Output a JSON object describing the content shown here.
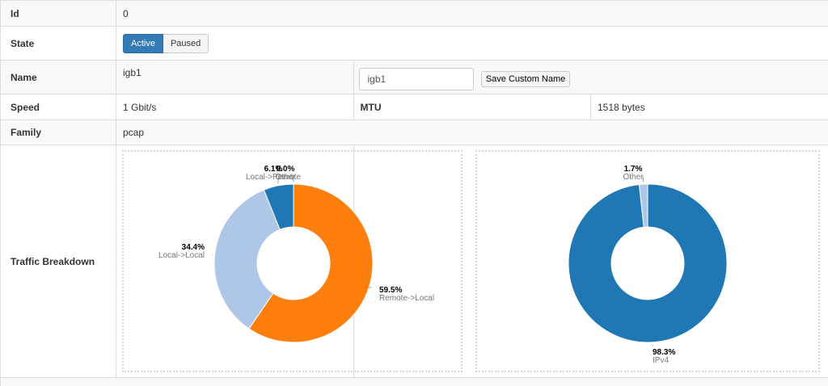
{
  "rows": {
    "id": {
      "label": "Id",
      "value": "0"
    },
    "state": {
      "label": "State",
      "buttons": [
        "Active",
        "Paused"
      ],
      "selected": "Active"
    },
    "name": {
      "label": "Name",
      "value": "igb1",
      "input_value": "igb1",
      "save_label": "Save Custom Name"
    },
    "speed": {
      "label": "Speed",
      "value": "1 Gbit/s"
    },
    "mtu": {
      "label": "MTU",
      "value": "1518 bytes"
    },
    "family": {
      "label": "Family",
      "value": "pcap"
    },
    "traffic": {
      "label": "Traffic Breakdown"
    }
  },
  "chart_data": [
    {
      "type": "pie",
      "donut": true,
      "slices": [
        {
          "label": "Remote->Local",
          "value": 59.5,
          "display": "59.5%",
          "color": "#ff7f0e"
        },
        {
          "label": "Local->Local",
          "value": 34.4,
          "display": "34.4%",
          "color": "#aec7e8"
        },
        {
          "label": "Local->Remote",
          "value": 6.1,
          "display": "6.1%",
          "color": "#1f77b4"
        },
        {
          "label": "Other",
          "value": 0.0,
          "display": "0.0%",
          "color": "#ffbb78"
        }
      ]
    },
    {
      "type": "pie",
      "donut": true,
      "slices": [
        {
          "label": "IPv4",
          "value": 98.3,
          "display": "98.3%",
          "color": "#1f77b4"
        },
        {
          "label": "Other",
          "value": 1.7,
          "display": "1.7%",
          "color": "#aec7e8"
        }
      ]
    }
  ]
}
